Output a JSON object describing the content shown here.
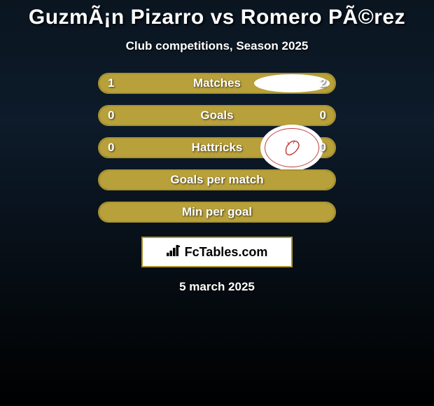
{
  "title": "GuzmÃ¡n Pizarro vs Romero PÃ©rez",
  "subtitle": "Club competitions, Season 2025",
  "date": "5 march 2025",
  "brand": {
    "text": "FcTables.com"
  },
  "colors": {
    "border": "#a8942e",
    "fill": "#b8a03a",
    "text": "#ffffff"
  },
  "rows": [
    {
      "label": "Matches",
      "left": "1",
      "right": "2",
      "left_pct": 33,
      "right_pct": 67,
      "show_left_badge": true,
      "show_right_badge": true,
      "badge_type": "ellipse"
    },
    {
      "label": "Goals",
      "left": "0",
      "right": "0",
      "left_pct": 100,
      "right_pct": 0,
      "show_left_badge": true,
      "show_right_badge": false,
      "badge_type": "ellipse-small"
    },
    {
      "label": "Hattricks",
      "left": "0",
      "right": "0",
      "left_pct": 100,
      "right_pct": 0,
      "show_left_badge": false,
      "show_right_badge": true,
      "badge_type": "logo"
    },
    {
      "label": "Goals per match",
      "left": "",
      "right": "",
      "left_pct": 100,
      "right_pct": 0,
      "show_left_badge": false,
      "show_right_badge": false,
      "badge_type": "none"
    },
    {
      "label": "Min per goal",
      "left": "",
      "right": "",
      "left_pct": 100,
      "right_pct": 0,
      "show_left_badge": false,
      "show_right_badge": false,
      "badge_type": "none"
    }
  ]
}
